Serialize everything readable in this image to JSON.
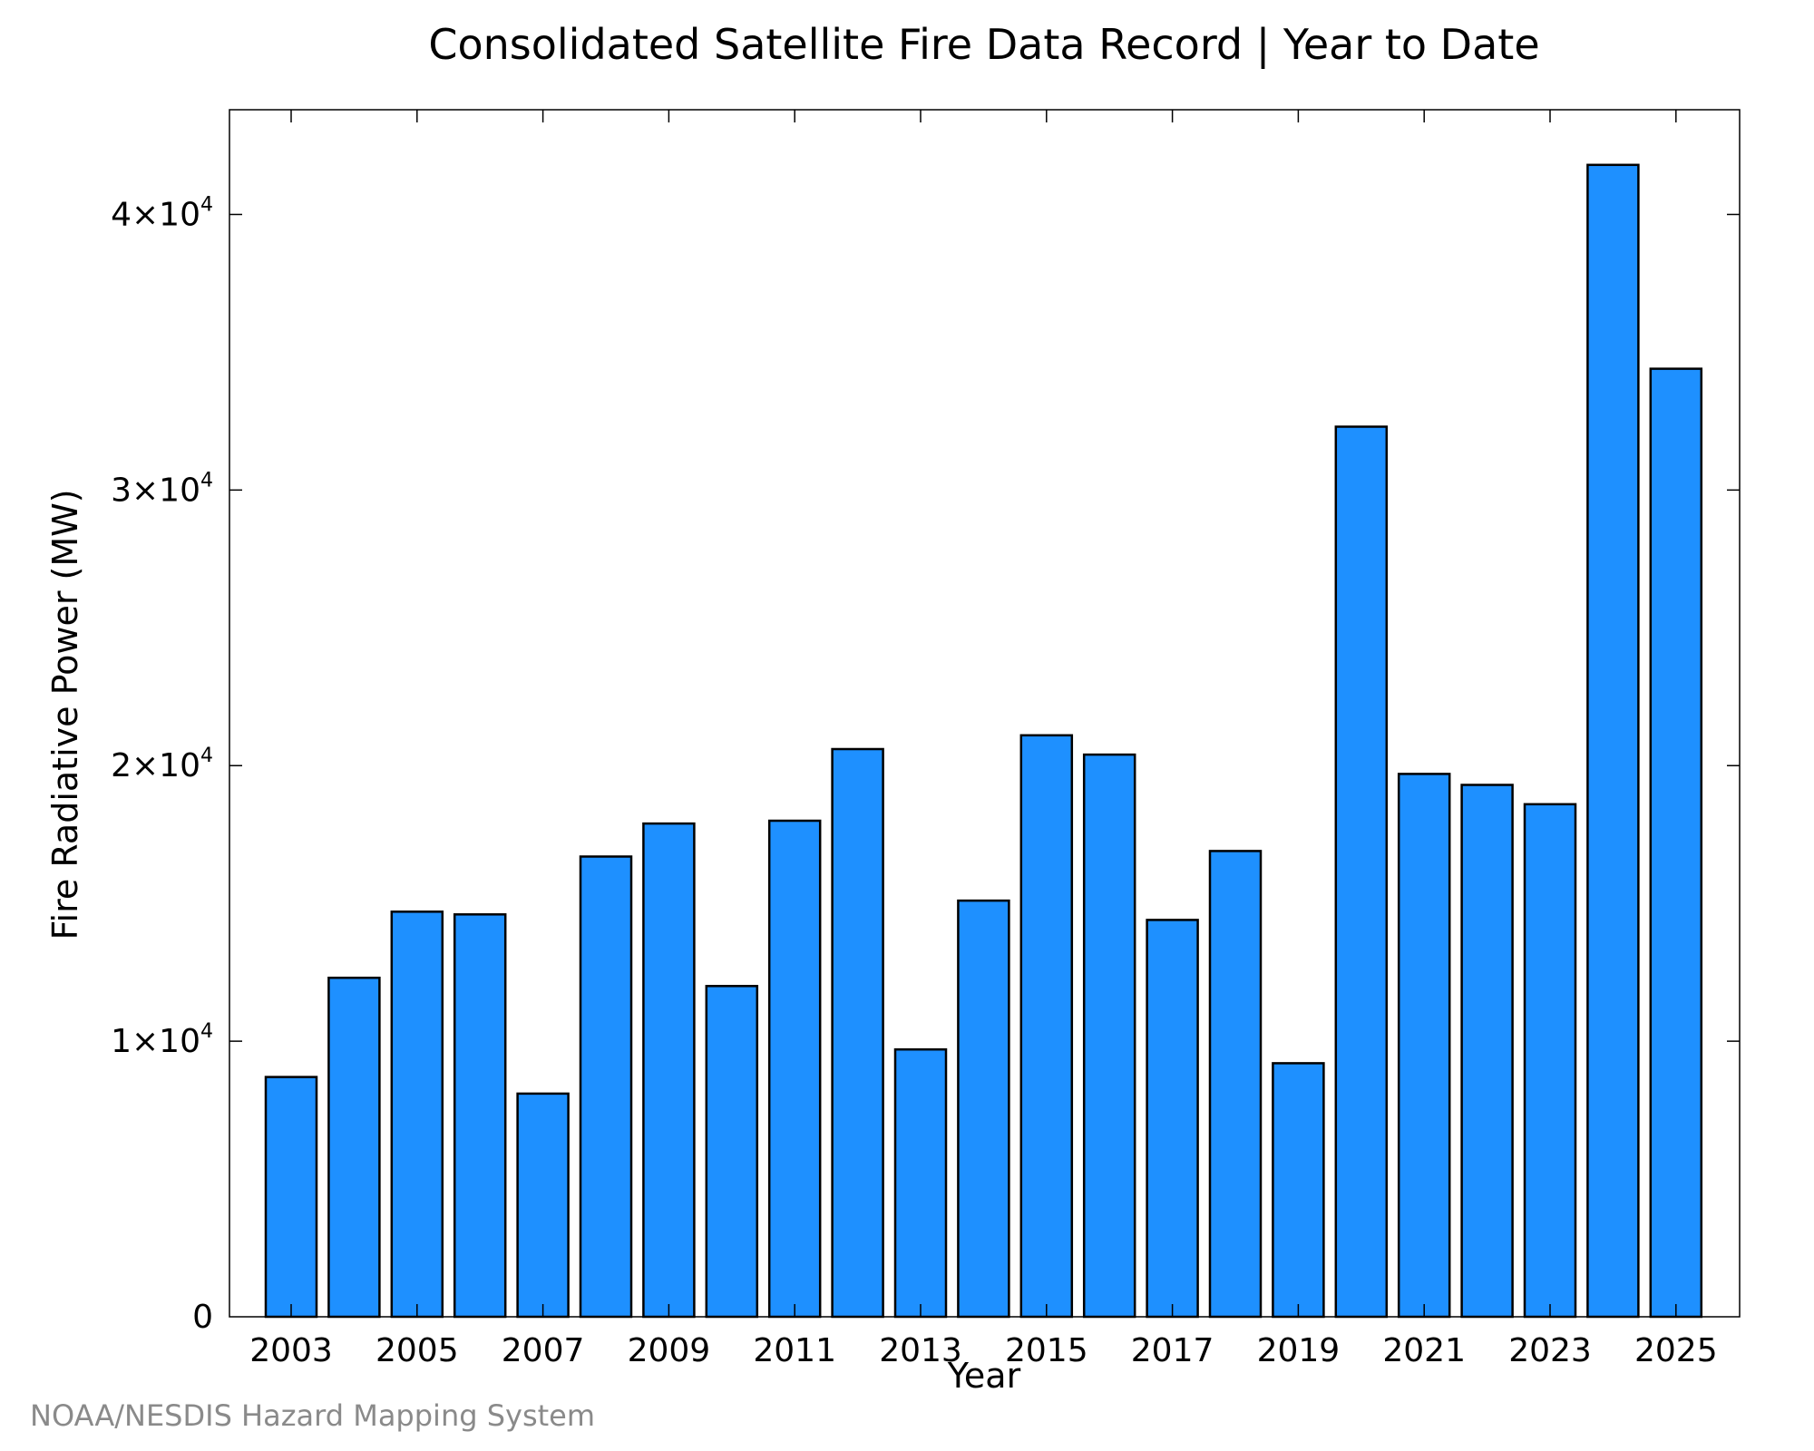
{
  "title": "Consolidated Satellite Fire Data Record | Year to Date",
  "credit": "NOAA/NESDIS Hazard Mapping System",
  "colors": {
    "bar": "#1e90ff",
    "bar_edge": "#000000",
    "axis": "#000000",
    "credit": "#8a8a8a"
  },
  "chart_data": {
    "type": "bar",
    "title": "Consolidated Satellite Fire Data Record | Year to Date",
    "xlabel": "Year",
    "ylabel": "Fire Radiative Power (MW)",
    "categories": [
      "2003",
      "2004",
      "2005",
      "2006",
      "2007",
      "2008",
      "2009",
      "2010",
      "2011",
      "2012",
      "2013",
      "2014",
      "2015",
      "2016",
      "2017",
      "2018",
      "2019",
      "2020",
      "2021",
      "2022",
      "2023",
      "2024",
      "2025"
    ],
    "values": [
      8700,
      12300,
      14700,
      14600,
      8100,
      16700,
      17900,
      12000,
      18000,
      20600,
      9700,
      15100,
      21100,
      20400,
      14400,
      16900,
      9200,
      32300,
      19700,
      19300,
      18600,
      41800,
      34400
    ],
    "ylim": [
      0,
      43800
    ],
    "xtick_labels": [
      "2003",
      "2005",
      "2007",
      "2009",
      "2011",
      "2013",
      "2015",
      "2017",
      "2019",
      "2021",
      "2023",
      "2025"
    ],
    "yticks": [
      {
        "value": 0,
        "mantissa": "0",
        "exponent": ""
      },
      {
        "value": 10000,
        "mantissa": "1×10",
        "exponent": "4"
      },
      {
        "value": 20000,
        "mantissa": "2×10",
        "exponent": "4"
      },
      {
        "value": 30000,
        "mantissa": "3×10",
        "exponent": "4"
      },
      {
        "value": 40000,
        "mantissa": "4×10",
        "exponent": "4"
      }
    ],
    "grid": false,
    "legend": "none"
  }
}
